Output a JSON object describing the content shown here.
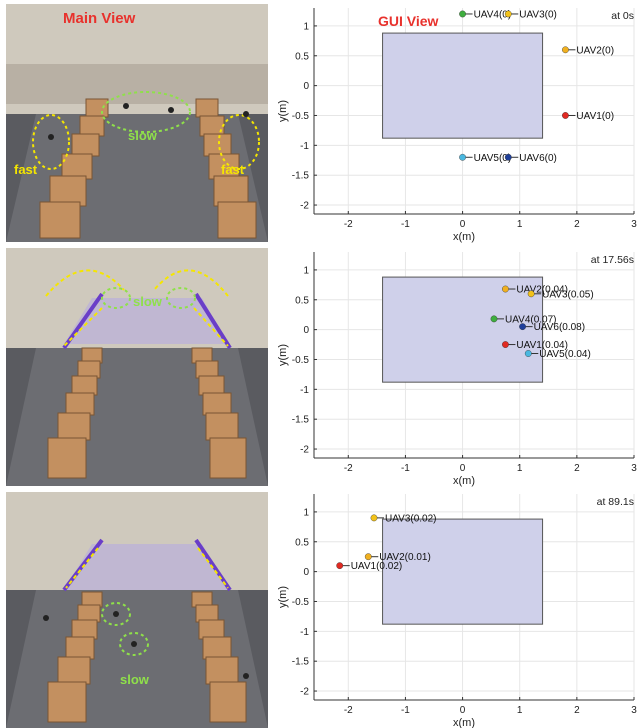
{
  "main_view_title": "Main View",
  "gui_view_title": "GUI View",
  "photos": [
    {
      "labels": {
        "fast_left": "fast",
        "slow": "slow",
        "fast_right": "fast"
      }
    },
    {
      "labels": {
        "slow": "slow"
      }
    },
    {
      "labels": {
        "slow": "slow"
      }
    }
  ],
  "colors": {
    "title_red": "#e8312c",
    "annotation_yellow": "#f5e600",
    "annotation_green": "#8fe04a",
    "arrow_purple": "#6a3ec8",
    "region_fill": "#cfd0ea"
  },
  "chart_data": [
    {
      "type": "scatter",
      "time_label": "at 0s",
      "xlabel": "x(m)",
      "ylabel": "y(m)",
      "xlim": [
        -2.6,
        3
      ],
      "ylim": [
        -2.15,
        1.3
      ],
      "xticks": [
        -2,
        -1,
        0,
        1,
        2,
        3
      ],
      "yticks": [
        1,
        0.5,
        0,
        -0.5,
        -1,
        -1.5,
        -2
      ],
      "grid": true,
      "region": {
        "x": [
          -1.4,
          1.4
        ],
        "y": [
          -0.88,
          0.88
        ]
      },
      "points": [
        {
          "label": "UAV4(0)",
          "x": 0.0,
          "y": 1.2,
          "color": "#3fae3f",
          "side": "right"
        },
        {
          "label": "UAV3(0)",
          "x": 0.8,
          "y": 1.2,
          "color": "#f2c21a",
          "side": "right"
        },
        {
          "label": "UAV2(0)",
          "x": 1.8,
          "y": 0.6,
          "color": "#f0b020",
          "side": "right"
        },
        {
          "label": "UAV1(0)",
          "x": 1.8,
          "y": -0.5,
          "color": "#e02a22",
          "side": "right"
        },
        {
          "label": "UAV5(0)",
          "x": 0.0,
          "y": -1.2,
          "color": "#4ab8e0",
          "side": "right"
        },
        {
          "label": "UAV6(0)",
          "x": 0.8,
          "y": -1.2,
          "color": "#1f3f9a",
          "side": "right"
        }
      ]
    },
    {
      "type": "scatter",
      "time_label": "at 17.56s",
      "xlabel": "x(m)",
      "ylabel": "y(m)",
      "xlim": [
        -2.6,
        3
      ],
      "ylim": [
        -2.15,
        1.3
      ],
      "xticks": [
        -2,
        -1,
        0,
        1,
        2,
        3
      ],
      "yticks": [
        1,
        0.5,
        0,
        -0.5,
        -1,
        -1.5,
        -2
      ],
      "grid": true,
      "region": {
        "x": [
          -1.4,
          1.4
        ],
        "y": [
          -0.88,
          0.88
        ]
      },
      "points": [
        {
          "label": "UAV2(0.04)",
          "x": 0.75,
          "y": 0.68,
          "color": "#f0b020",
          "side": "right"
        },
        {
          "label": "UAV3(0.05)",
          "x": 1.2,
          "y": 0.6,
          "color": "#f2c21a",
          "side": "right"
        },
        {
          "label": "UAV4(0.07)",
          "x": 0.55,
          "y": 0.18,
          "color": "#3fae3f",
          "side": "right"
        },
        {
          "label": "UAV6(0.08)",
          "x": 1.05,
          "y": 0.05,
          "color": "#1f3f9a",
          "side": "right"
        },
        {
          "label": "UAV1(0.04)",
          "x": 0.75,
          "y": -0.25,
          "color": "#e02a22",
          "side": "right"
        },
        {
          "label": "UAV5(0.04)",
          "x": 1.15,
          "y": -0.4,
          "color": "#4ab8e0",
          "side": "right"
        }
      ]
    },
    {
      "type": "scatter",
      "time_label": "at 89.1s",
      "xlabel": "x(m)",
      "ylabel": "y(m)",
      "xlim": [
        -2.6,
        3
      ],
      "ylim": [
        -2.15,
        1.3
      ],
      "xticks": [
        -2,
        -1,
        0,
        1,
        2,
        3
      ],
      "yticks": [
        1,
        0.5,
        0,
        -0.5,
        -1,
        -1.5,
        -2
      ],
      "grid": true,
      "region": {
        "x": [
          -1.4,
          1.4
        ],
        "y": [
          -0.88,
          0.88
        ]
      },
      "points": [
        {
          "label": "UAV3(0.02)",
          "x": -1.55,
          "y": 0.9,
          "color": "#f2c21a",
          "side": "right"
        },
        {
          "label": "UAV2(0.01)",
          "x": -1.65,
          "y": 0.25,
          "color": "#f0b020",
          "side": "right"
        },
        {
          "label": "UAV1(0.02)",
          "x": -2.15,
          "y": 0.1,
          "color": "#e02a22",
          "side": "right"
        }
      ]
    }
  ]
}
